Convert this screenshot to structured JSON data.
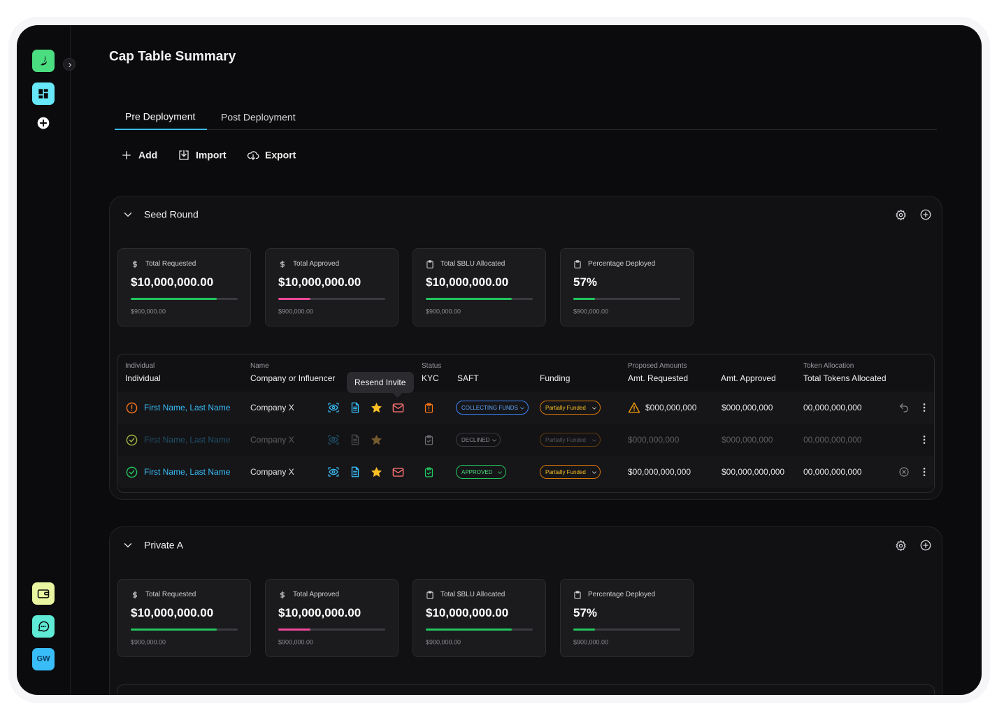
{
  "sidebar": {
    "avatar": "GW"
  },
  "title": "Cap Table Summary",
  "tabs": [
    "Pre Deployment",
    "Post Deployment"
  ],
  "actions": [
    "Add",
    "Import",
    "Export"
  ],
  "tooltip": "Resend Invite",
  "sections": [
    {
      "name": "Seed Round",
      "stats": [
        {
          "label": "Total Requested",
          "value": "$10,000,000.00",
          "sub": "$900,000.00"
        },
        {
          "label": "Total Approved",
          "value": "$10,000,000.00",
          "sub": "$900,000.00"
        },
        {
          "label": "Total $BLU Allocated",
          "value": "$10,000,000.00",
          "sub": "$900,000.00"
        },
        {
          "label": "Percentage Deployed",
          "value": "57%",
          "sub": "$900,000.00"
        }
      ],
      "table": {
        "columns": [
          {
            "group": "Individual",
            "label": "Individual"
          },
          {
            "group": "Name",
            "label": "Company or Influencer"
          },
          {
            "group": "Status",
            "label": "KYC"
          },
          {
            "label": "SAFT"
          },
          {
            "label": "Funding"
          },
          {
            "group": "Proposed Amounts",
            "label": "Amt. Requested"
          },
          {
            "label": "Amt. Approved"
          },
          {
            "group": "Token Allocation",
            "label": "Total Tokens Allocated"
          }
        ],
        "rows": [
          {
            "name": "First Name, Last Name",
            "company": "Company X",
            "saft": "COLLECTING FUNDS",
            "funding": "Partially Funded",
            "requested": "$000,000,000",
            "approved": "$000,000,000",
            "tokens": "00,000,000,000"
          },
          {
            "name": "First Name, Last Name",
            "company": "Company X",
            "saft": "DECLINED",
            "funding": "Partially Funded",
            "requested": "$000,000,000",
            "approved": "$000,000,000",
            "tokens": "00,000,000,000"
          },
          {
            "name": "First Name, Last Name",
            "company": "Company X",
            "saft": "APPROVED",
            "funding": "Partially Funded",
            "requested": "$00,000,000,000",
            "approved": "$00,000,000,000",
            "tokens": "00,000,000,000"
          }
        ]
      }
    },
    {
      "name": "Private A",
      "stats": [
        {
          "label": "Total Requested",
          "value": "$10,000,000.00",
          "sub": "$900,000.00"
        },
        {
          "label": "Total Approved",
          "value": "$10,000,000.00",
          "sub": "$900,000.00"
        },
        {
          "label": "Total $BLU Allocated",
          "value": "$10,000,000.00",
          "sub": "$900,000.00"
        },
        {
          "label": "Percentage Deployed",
          "value": "57%",
          "sub": "$900,000.00"
        }
      ]
    }
  ]
}
